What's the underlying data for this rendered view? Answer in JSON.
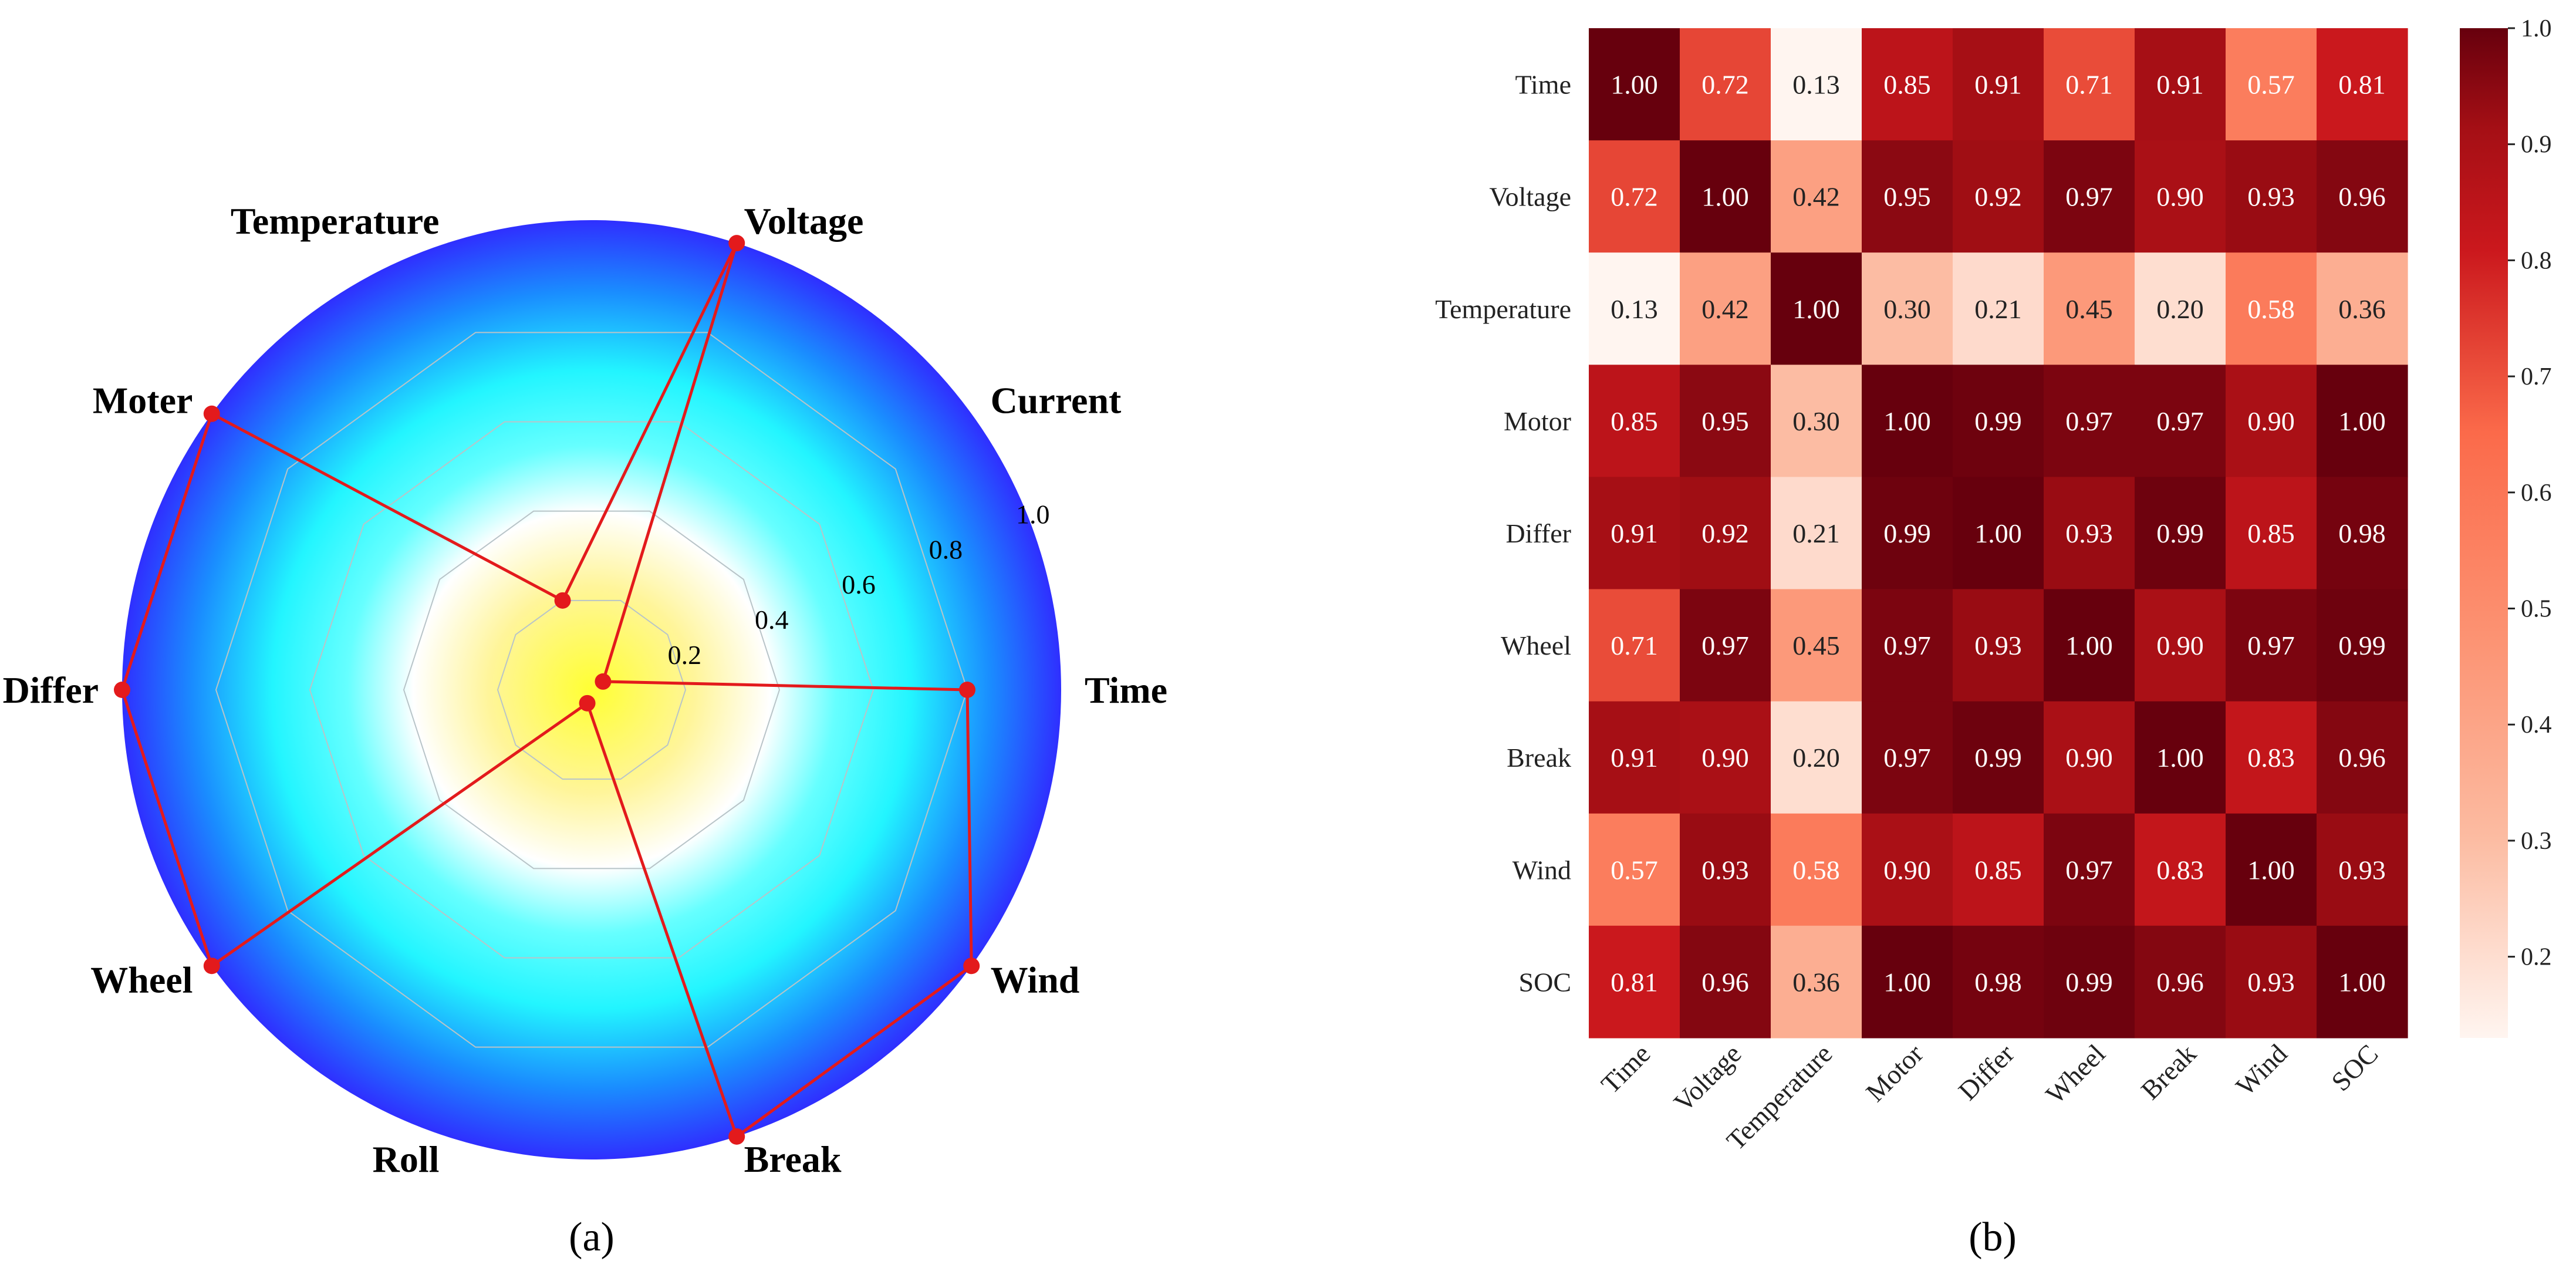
{
  "chart_data": [
    {
      "type": "radar",
      "panel_label": "(a)",
      "axes": [
        "Time",
        "Current",
        "Voltage",
        "Temperature",
        "Moter",
        "Differ",
        "Wheel",
        "Roll",
        "Break",
        "Wind"
      ],
      "values": [
        0.8,
        0.0,
        1.0,
        0.2,
        1.0,
        1.0,
        1.0,
        0.0,
        1.0,
        1.0
      ],
      "radial_ticks": [
        "0.2",
        "0.4",
        "0.6",
        "0.8",
        "1.0"
      ],
      "radial_tick_values": [
        0.2,
        0.4,
        0.6,
        0.8,
        1.0
      ],
      "rlim": [
        0,
        1.0
      ],
      "grid": true,
      "line_color": "#e31a1c",
      "background_colors": [
        "#ffff33",
        "#ffffff",
        "#33ffff",
        "#2f2fff"
      ]
    },
    {
      "type": "heatmap",
      "panel_label": "(b)",
      "row_labels": [
        "Time",
        "Voltage",
        "Temperature",
        "Motor",
        "Differ",
        "Wheel",
        "Break",
        "Wind",
        "SOC"
      ],
      "col_labels": [
        "Time",
        "Voltage",
        "Temperature",
        "Motor",
        "Differ",
        "Wheel",
        "Break",
        "Wind",
        "SOC"
      ],
      "values": [
        [
          "1.00",
          "0.72",
          "0.13",
          "0.85",
          "0.91",
          "0.71",
          "0.91",
          "0.57",
          "0.81"
        ],
        [
          "0.72",
          "1.00",
          "0.42",
          "0.95",
          "0.92",
          "0.97",
          "0.90",
          "0.93",
          "0.96"
        ],
        [
          "0.13",
          "0.42",
          "1.00",
          "0.30",
          "0.21",
          "0.45",
          "0.20",
          "0.58",
          "0.36"
        ],
        [
          "0.85",
          "0.95",
          "0.30",
          "1.00",
          "0.99",
          "0.97",
          "0.97",
          "0.90",
          "1.00"
        ],
        [
          "0.91",
          "0.92",
          "0.21",
          "0.99",
          "1.00",
          "0.93",
          "0.99",
          "0.85",
          "0.98"
        ],
        [
          "0.71",
          "0.97",
          "0.45",
          "0.97",
          "0.93",
          "1.00",
          "0.90",
          "0.97",
          "0.99"
        ],
        [
          "0.91",
          "0.90",
          "0.20",
          "0.97",
          "0.99",
          "0.90",
          "1.00",
          "0.83",
          "0.96"
        ],
        [
          "0.57",
          "0.93",
          "0.58",
          "0.90",
          "0.85",
          "0.97",
          "0.83",
          "1.00",
          "0.93"
        ],
        [
          "0.81",
          "0.96",
          "0.36",
          "1.00",
          "0.98",
          "0.99",
          "0.96",
          "0.93",
          "1.00"
        ]
      ],
      "colorbar": {
        "ticks": [
          "0.2",
          "0.3",
          "0.4",
          "0.5",
          "0.6",
          "0.7",
          "0.8",
          "0.9",
          "1.0"
        ],
        "tick_values": [
          0.2,
          0.3,
          0.4,
          0.5,
          0.6,
          0.7,
          0.8,
          0.9,
          1.0
        ],
        "range": [
          0.13,
          1.0
        ]
      },
      "colormap": "Reds"
    }
  ]
}
